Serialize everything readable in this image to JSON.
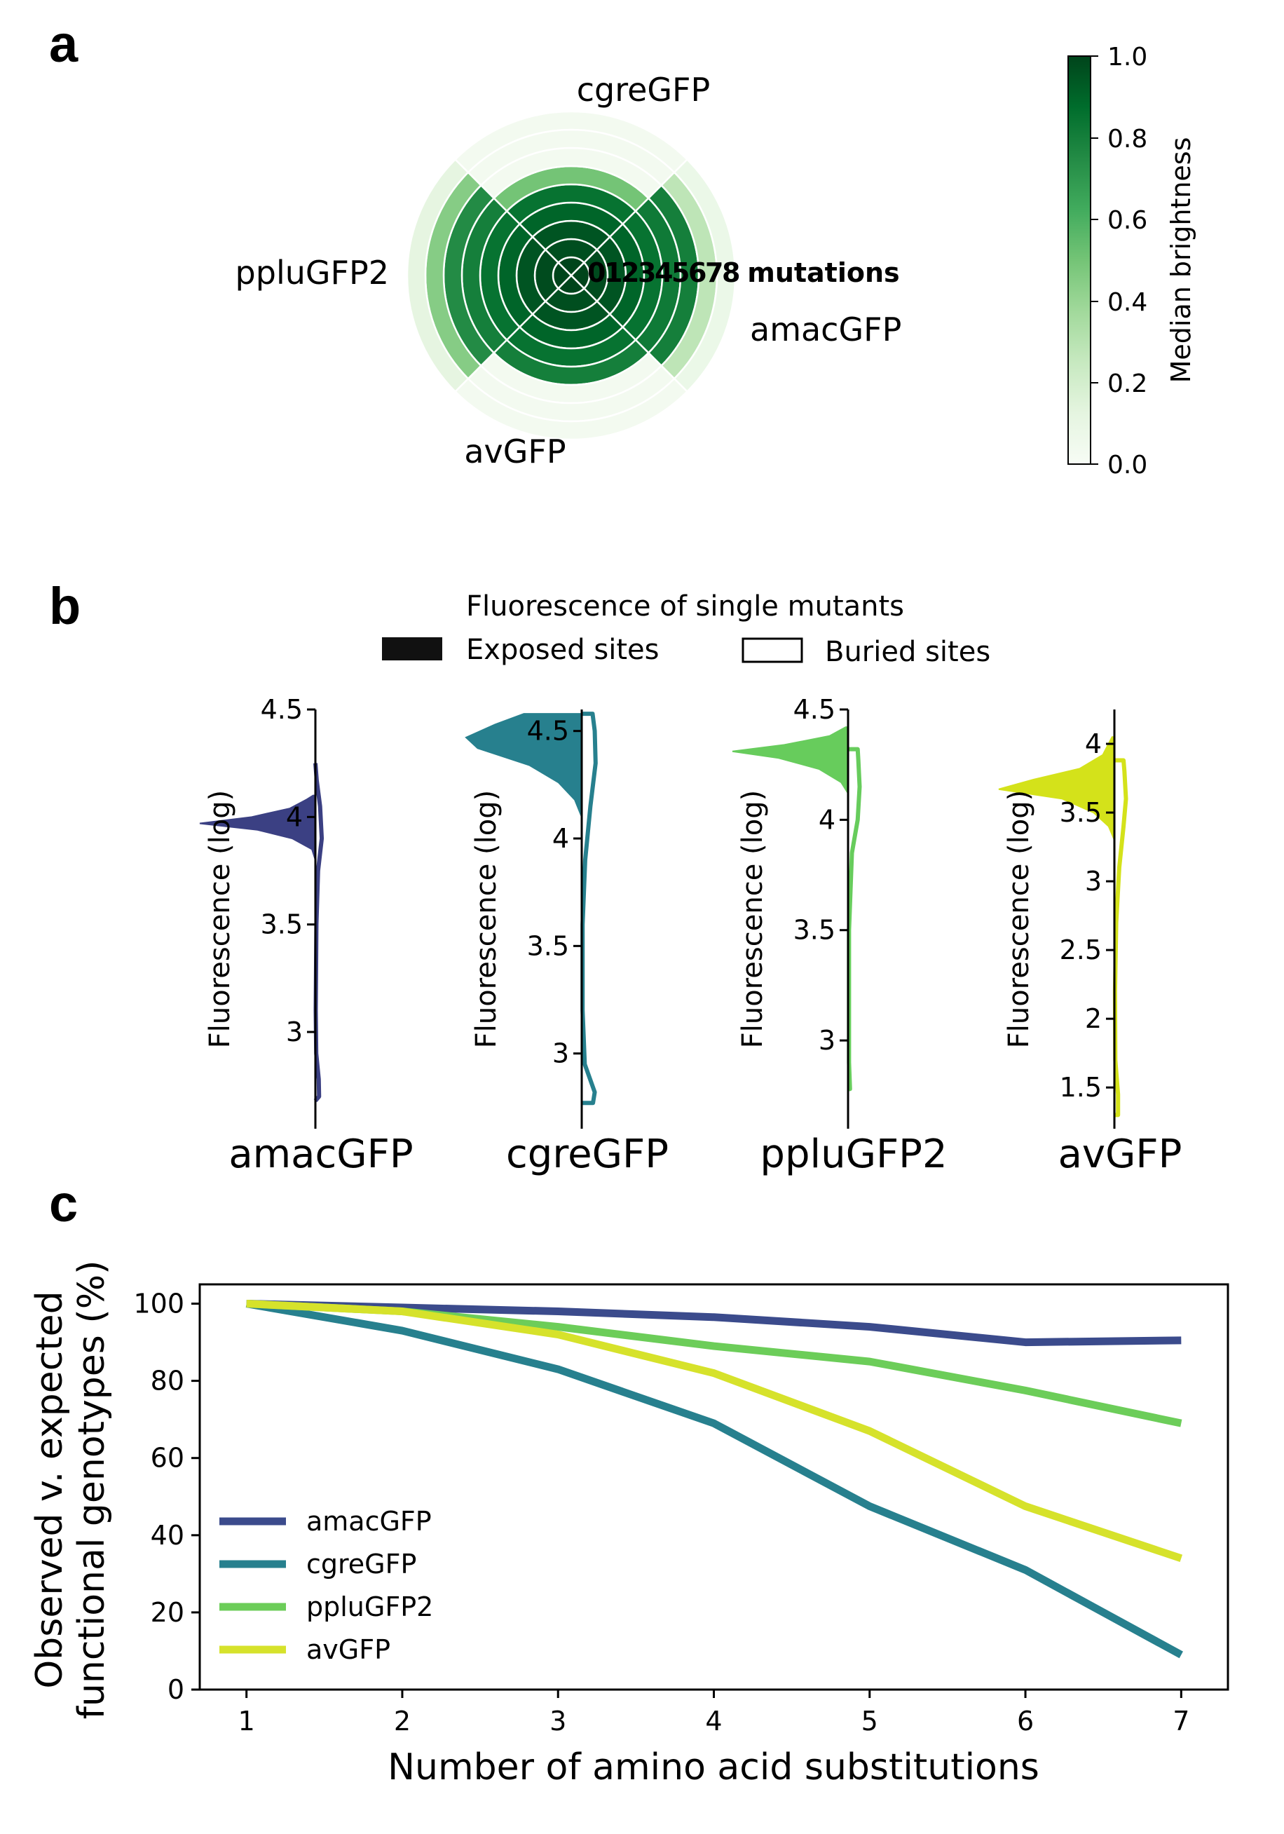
{
  "panel_labels": {
    "a": "a",
    "b": "b",
    "c": "c"
  },
  "chart_data": [
    {
      "panel": "a",
      "type": "heatmap",
      "subtype": "polar",
      "segments": [
        "cgreGFP",
        "amacGFP",
        "avGFP",
        "ppluGFP2"
      ],
      "ring_labels": [
        "0",
        "1",
        "2",
        "3",
        "4",
        "5",
        "6",
        "7",
        "8"
      ],
      "ring_suffix": " mutations",
      "median_brightness": {
        "cgreGFP": [
          1.0,
          0.97,
          0.95,
          0.9,
          0.85,
          0.5,
          0.03,
          0.03,
          0.03
        ],
        "amacGFP": [
          1.0,
          0.98,
          0.95,
          0.9,
          0.85,
          0.82,
          0.8,
          0.28,
          0.08
        ],
        "avGFP": [
          1.0,
          0.97,
          0.95,
          0.9,
          0.85,
          0.8,
          0.03,
          0.03,
          0.03
        ],
        "ppluGFP2": [
          1.0,
          0.98,
          0.95,
          0.9,
          0.85,
          0.8,
          0.75,
          0.45,
          0.12
        ]
      },
      "colorbar": {
        "label": "Median brightness",
        "ticks": [
          "0.0",
          "0.2",
          "0.4",
          "0.6",
          "0.8",
          "1.0"
        ],
        "range": [
          0,
          1
        ],
        "colormap": "Greens"
      }
    },
    {
      "panel": "b",
      "type": "violin",
      "title": "Fluorescence of single mutants",
      "legend": {
        "filled": "Exposed sites",
        "outline": "Buried sites"
      },
      "ylabel": "Fluorescence (log)",
      "proteins": [
        {
          "name": "amacGFP",
          "color": "#3b4083",
          "ylim": [
            2.55,
            4.5
          ],
          "ticks": [
            3,
            3.5,
            4,
            4.5
          ],
          "tick_labels": [
            "3",
            "3.5",
            "4",
            "4.5"
          ],
          "exposed_top": 4.1,
          "exposed_bottom": 3.8,
          "exposed_density": [
            [
              3.8,
              0.0
            ],
            [
              3.85,
              0.03
            ],
            [
              3.9,
              0.2
            ],
            [
              3.94,
              0.5
            ],
            [
              3.97,
              1.0
            ],
            [
              4.0,
              0.55
            ],
            [
              4.04,
              0.22
            ],
            [
              4.08,
              0.08
            ],
            [
              4.1,
              0.02
            ]
          ],
          "buried_top": 4.25,
          "buried_bottom": 2.68,
          "buried_density": [
            [
              2.68,
              0.0
            ],
            [
              2.7,
              0.22
            ],
            [
              2.78,
              0.2
            ],
            [
              2.9,
              0.05
            ],
            [
              3.1,
              0.02
            ],
            [
              3.5,
              0.06
            ],
            [
              3.75,
              0.16
            ],
            [
              3.9,
              0.38
            ],
            [
              4.05,
              0.28
            ],
            [
              4.17,
              0.08
            ],
            [
              4.25,
              0.0
            ]
          ],
          "buried_max_halfwidth": 0.055
        },
        {
          "name": "cgreGFP",
          "color": "#27808e",
          "ylim": [
            2.65,
            4.6
          ],
          "ticks": [
            3,
            3.5,
            4,
            4.5
          ],
          "tick_labels": [
            "3",
            "3.5",
            "4",
            "4.5"
          ],
          "exposed_top": 4.58,
          "exposed_bottom": 4.1,
          "exposed_density": [
            [
              4.1,
              0.0
            ],
            [
              4.18,
              0.06
            ],
            [
              4.26,
              0.2
            ],
            [
              4.34,
              0.45
            ],
            [
              4.42,
              0.9
            ],
            [
              4.47,
              1.0
            ],
            [
              4.53,
              0.75
            ],
            [
              4.58,
              0.5
            ]
          ],
          "buried_top": 4.58,
          "buried_bottom": 2.77,
          "buried_density": [
            [
              2.77,
              0.26
            ],
            [
              2.82,
              0.3
            ],
            [
              2.95,
              0.07
            ],
            [
              3.2,
              0.02
            ],
            [
              3.6,
              0.02
            ],
            [
              3.9,
              0.08
            ],
            [
              4.15,
              0.2
            ],
            [
              4.35,
              0.32
            ],
            [
              4.5,
              0.3
            ],
            [
              4.58,
              0.25
            ]
          ],
          "buried_max_halfwidth": 0.12
        },
        {
          "name": "ppluGFP2",
          "color": "#67cc5c",
          "ylim": [
            2.6,
            4.5
          ],
          "ticks": [
            3,
            3.5,
            4,
            4.5
          ],
          "tick_labels": [
            "3",
            "3.5",
            "4",
            "4.5"
          ],
          "exposed_top": 4.42,
          "exposed_bottom": 4.12,
          "exposed_density": [
            [
              4.12,
              0.0
            ],
            [
              4.17,
              0.06
            ],
            [
              4.23,
              0.25
            ],
            [
              4.28,
              0.6
            ],
            [
              4.31,
              1.0
            ],
            [
              4.34,
              0.55
            ],
            [
              4.38,
              0.16
            ],
            [
              4.42,
              0.02
            ]
          ],
          "buried_top": 4.32,
          "buried_bottom": 2.78,
          "buried_density": [
            [
              2.78,
              0.06
            ],
            [
              2.9,
              0.03
            ],
            [
              3.5,
              0.03
            ],
            [
              3.85,
              0.12
            ],
            [
              4.0,
              0.3
            ],
            [
              4.15,
              0.36
            ],
            [
              4.27,
              0.32
            ],
            [
              4.32,
              0.3
            ]
          ],
          "buried_max_halfwidth": 0.1
        },
        {
          "name": "avGFP",
          "color": "#d4e21a",
          "ylim": [
            1.2,
            4.25
          ],
          "ticks": [
            1.5,
            2,
            2.5,
            3,
            3.5,
            4
          ],
          "tick_labels": [
            "1.5",
            "2",
            "2.5",
            "3",
            "3.5",
            "4"
          ],
          "exposed_top": 4.05,
          "exposed_bottom": 3.3,
          "exposed_density": [
            [
              3.3,
              0.0
            ],
            [
              3.4,
              0.05
            ],
            [
              3.5,
              0.18
            ],
            [
              3.6,
              0.45
            ],
            [
              3.67,
              1.0
            ],
            [
              3.74,
              0.7
            ],
            [
              3.82,
              0.3
            ],
            [
              3.92,
              0.1
            ],
            [
              4.05,
              0.02
            ]
          ],
          "buried_top": 3.88,
          "buried_bottom": 1.3,
          "buried_density": [
            [
              1.3,
              0.12
            ],
            [
              1.45,
              0.12
            ],
            [
              1.7,
              0.03
            ],
            [
              2.2,
              0.02
            ],
            [
              2.7,
              0.06
            ],
            [
              3.1,
              0.16
            ],
            [
              3.4,
              0.3
            ],
            [
              3.6,
              0.38
            ],
            [
              3.8,
              0.33
            ],
            [
              3.88,
              0.3
            ]
          ],
          "buried_max_halfwidth": 0.1
        }
      ]
    },
    {
      "panel": "c",
      "type": "line",
      "xlabel": "Number of amino acid substitutions",
      "ylabel": "Observed v. expected functional genotypes (%)",
      "ylabel_lines": [
        "Observed v. expected",
        "functional genotypes (%)"
      ],
      "x": [
        1,
        2,
        3,
        4,
        5,
        6,
        7
      ],
      "xlim": [
        0.7,
        7.3
      ],
      "ylim": [
        0,
        105
      ],
      "xticks": [
        "1",
        "2",
        "3",
        "4",
        "5",
        "6",
        "7"
      ],
      "yticks": [
        "0",
        "20",
        "40",
        "60",
        "80",
        "100"
      ],
      "legend_position": "lower-left",
      "series": [
        {
          "name": "amacGFP",
          "color": "#3b4b8c",
          "values": [
            100,
            99,
            98,
            96.5,
            94,
            90,
            90.5
          ]
        },
        {
          "name": "cgreGFP",
          "color": "#27808e",
          "values": [
            100,
            93,
            83,
            69,
            47.5,
            31,
            9
          ]
        },
        {
          "name": "ppluGFP2",
          "color": "#6ccd59",
          "values": [
            100,
            98,
            94,
            89,
            85,
            77.5,
            69
          ]
        },
        {
          "name": "avGFP",
          "color": "#d6e22b",
          "values": [
            100,
            98,
            92,
            82,
            67,
            47.5,
            34
          ]
        }
      ]
    }
  ]
}
